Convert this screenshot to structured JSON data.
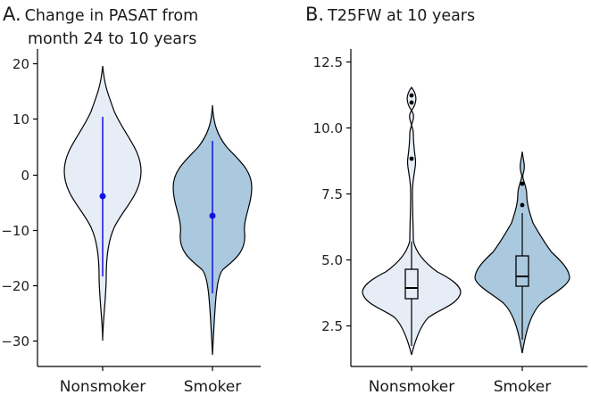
{
  "chart_data": [
    {
      "type": "violin",
      "panel_label": "A.",
      "title_line1": "Change in PASAT from",
      "title_line2": "month 24 to 10 years",
      "categories": [
        "Nonsmoker",
        "Smoker"
      ],
      "ylim": [
        -32.5,
        22
      ],
      "yticks": [
        20,
        10,
        0,
        -10,
        -20,
        -30
      ],
      "summary": [
        {
          "name": "Nonsmoker",
          "mean": -3.8,
          "lower": -18,
          "upper": 10.3
        },
        {
          "name": "Smoker",
          "mean": -7.3,
          "lower": -21,
          "upper": 6.3
        }
      ],
      "colors": {
        "Nonsmoker": "#e6edf6",
        "Smoker": "#aac9df",
        "interval": "#1212e0"
      }
    },
    {
      "type": "violin",
      "panel_label": "B.",
      "title_line1": "T25FW at 10 years",
      "categories": [
        "Nonsmoker",
        "Smoker"
      ],
      "ylim": [
        1.5,
        12.9
      ],
      "yticks": [
        12.5,
        10.0,
        7.5,
        5.0,
        2.5
      ],
      "boxplots": [
        {
          "name": "Nonsmoker",
          "whisker_low": 2.6,
          "q1": 3.6,
          "median": 3.9,
          "q3": 4.6,
          "whisker_high": 5.8,
          "outliers": [
            8.9,
            11.0,
            11.2
          ]
        },
        {
          "name": "Smoker",
          "whisker_low": 3.0,
          "q1": 4.1,
          "median": 4.4,
          "q3": 5.2,
          "whisker_high": 6.8,
          "outliers": [
            7.1,
            7.9
          ]
        }
      ],
      "colors": {
        "Nonsmoker": "#e6edf6",
        "Smoker": "#aac9df"
      }
    }
  ]
}
